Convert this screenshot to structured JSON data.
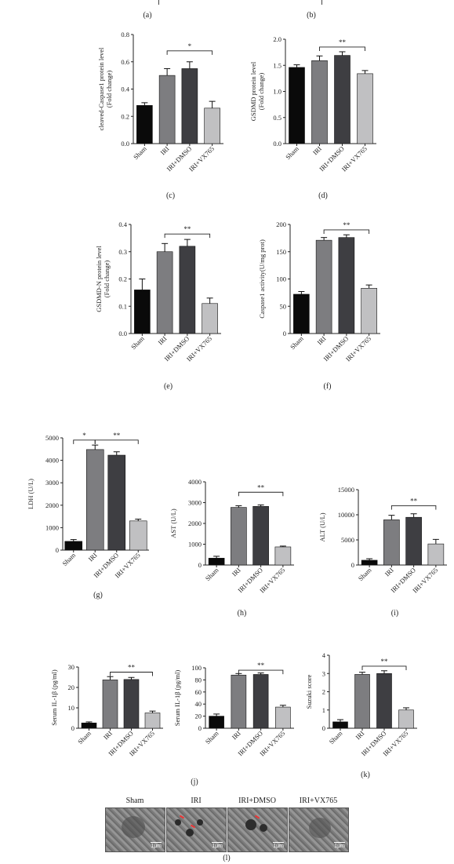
{
  "panels_top": [
    {
      "letter": "(a)"
    },
    {
      "letter": "(b)"
    }
  ],
  "chart_data": [
    {
      "id": "c",
      "letter": "(c)",
      "type": "bar",
      "ylabel": "cleaved-Caspase1 protein level (Fold change)",
      "ylabel_lines": [
        "cleaved-Caspase1 protein level",
        "(Fold change)"
      ],
      "categories": [
        "Sham",
        "IRI",
        "IRI+DMSO",
        "IRI+VX765"
      ],
      "values": [
        0.28,
        0.5,
        0.55,
        0.26
      ],
      "errors": [
        0.02,
        0.05,
        0.05,
        0.05
      ],
      "ylim": [
        0,
        0.8
      ],
      "ticks": [
        0.0,
        0.2,
        0.4,
        0.6,
        0.8
      ],
      "tick_labels": [
        "0.0",
        "0.2",
        "0.4",
        "0.6",
        "0.8"
      ],
      "sig": [
        {
          "from": 1,
          "to": 3,
          "label": "*",
          "level": 0.68
        }
      ]
    },
    {
      "id": "d",
      "letter": "(d)",
      "type": "bar",
      "ylabel": "GSDMD protein level (Fold change)",
      "ylabel_lines": [
        "GSDMD protein level",
        "(Fold change)"
      ],
      "categories": [
        "Sham",
        "IRI",
        "IRI+DMSO",
        "IRI+VX765"
      ],
      "values": [
        1.46,
        1.59,
        1.69,
        1.34
      ],
      "errors": [
        0.05,
        0.09,
        0.07,
        0.06
      ],
      "ylim": [
        0,
        2.0
      ],
      "ticks": [
        0.0,
        0.5,
        1.0,
        1.5,
        2.0
      ],
      "tick_labels": [
        "0.0",
        "0.5",
        "1.0",
        "1.5",
        "2.0"
      ],
      "sig": [
        {
          "from": 1,
          "to": 3,
          "label": "**",
          "level": 1.85
        }
      ]
    },
    {
      "id": "e",
      "letter": "(e)",
      "type": "bar",
      "ylabel": "GSDMD-N protein level (Fold change)",
      "ylabel_lines": [
        "GSDMD-N protein level",
        "(Fold change)"
      ],
      "categories": [
        "Sham",
        "IRI",
        "IRI+DMSO",
        "IRI+VX765"
      ],
      "values": [
        0.16,
        0.3,
        0.32,
        0.11
      ],
      "errors": [
        0.04,
        0.03,
        0.025,
        0.02
      ],
      "ylim": [
        0,
        0.4
      ],
      "ticks": [
        0.0,
        0.1,
        0.2,
        0.3,
        0.4
      ],
      "tick_labels": [
        "0.0",
        "0.1",
        "0.2",
        "0.3",
        "0.4"
      ],
      "sig": [
        {
          "from": 1,
          "to": 3,
          "label": "**",
          "level": 0.365
        }
      ]
    },
    {
      "id": "f",
      "letter": "(f)",
      "type": "bar",
      "ylabel": "Caspase1 activity(U/mg prot)",
      "ylabel_lines": [
        "Caspase1 activity(U/mg prot)"
      ],
      "categories": [
        "Sham",
        "IRI",
        "IRI+DMSO",
        "IRI+VX765"
      ],
      "values": [
        72,
        171,
        176,
        83
      ],
      "errors": [
        5,
        5,
        5,
        6
      ],
      "ylim": [
        0,
        200
      ],
      "ticks": [
        0,
        50,
        100,
        150,
        200
      ],
      "tick_labels": [
        "0",
        "50",
        "100",
        "150",
        "200"
      ],
      "sig": [
        {
          "from": 1,
          "to": 3,
          "label": "**",
          "level": 190
        }
      ]
    },
    {
      "id": "g",
      "letter": "(g)",
      "type": "bar",
      "ylabel": "LDH (U/L)",
      "ylabel_lines": [
        "LDH (U/L)"
      ],
      "categories": [
        "Sham",
        "IRI",
        "IRI+DMSO",
        "IRI+VX765"
      ],
      "values": [
        390,
        4480,
        4230,
        1300
      ],
      "errors": [
        80,
        200,
        150,
        80
      ],
      "ylim": [
        0,
        5000
      ],
      "ticks": [
        0,
        1000,
        2000,
        3000,
        4000,
        5000
      ],
      "tick_labels": [
        "0",
        "1000",
        "2000",
        "3000",
        "4000",
        "5000"
      ],
      "sig": [
        {
          "from": 0,
          "to": 1,
          "label": "*",
          "level": 4900
        },
        {
          "from": 1,
          "to": 3,
          "label": "**",
          "level": 4900
        }
      ]
    },
    {
      "id": "h",
      "letter": "(h)",
      "type": "bar",
      "ylabel": "AST (U/L)",
      "ylabel_lines": [
        "AST (U/L)"
      ],
      "categories": [
        "Sham",
        "IRI",
        "IRI+DMSO",
        "IRI+VX765"
      ],
      "values": [
        330,
        2770,
        2820,
        870
      ],
      "errors": [
        90,
        80,
        70,
        40
      ],
      "ylim": [
        0,
        4000
      ],
      "ticks": [
        0,
        1000,
        2000,
        3000,
        4000
      ],
      "tick_labels": [
        "0",
        "1000",
        "2000",
        "3000",
        "4000"
      ],
      "sig": [
        {
          "from": 1,
          "to": 3,
          "label": "**",
          "level": 3500
        }
      ]
    },
    {
      "id": "i",
      "letter": "(i)",
      "type": "bar",
      "ylabel": "ALT (U/L)",
      "ylabel_lines": [
        "ALT (U/L)"
      ],
      "categories": [
        "Sham",
        "IRI",
        "IRI+DMSO",
        "IRI+VX765"
      ],
      "values": [
        950,
        9000,
        9500,
        4200
      ],
      "errors": [
        300,
        900,
        700,
        900
      ],
      "ylim": [
        0,
        15000
      ],
      "ticks": [
        0,
        5000,
        10000,
        15000
      ],
      "tick_labels": [
        "0",
        "5000",
        "10000",
        "15000"
      ],
      "sig": [
        {
          "from": 1,
          "to": 3,
          "label": "**",
          "level": 11800
        }
      ]
    },
    {
      "id": "j1",
      "letter": "",
      "type": "bar",
      "ylabel": "Serum IL-1β (pg/ml)",
      "ylabel_lines": [
        "Serum IL-1β (pg/ml)"
      ],
      "categories": [
        "Sham",
        "IRI",
        "IRI+DMSO",
        "IRI+VX765"
      ],
      "values": [
        2.6,
        23.7,
        23.9,
        7.5
      ],
      "errors": [
        0.5,
        1.6,
        1.0,
        0.9
      ],
      "ylim": [
        0,
        30
      ],
      "ticks": [
        0,
        10,
        20,
        30
      ],
      "tick_labels": [
        "0",
        "10",
        "20",
        "30"
      ],
      "sig": [
        {
          "from": 1,
          "to": 3,
          "label": "**",
          "level": 27.5
        }
      ]
    },
    {
      "id": "j2",
      "letter": "",
      "type": "bar",
      "ylabel": "Serum IL-1β (pg/ml)",
      "ylabel_lines": [
        "Serum IL-1β (pg/ml)"
      ],
      "categories": [
        "Sham",
        "IRI",
        "IRI+DMSO",
        "IRI+VX765"
      ],
      "values": [
        20,
        88,
        89,
        35
      ],
      "errors": [
        3.5,
        2.5,
        2.5,
        3
      ],
      "ylim": [
        0,
        100
      ],
      "ticks": [
        0,
        20,
        40,
        60,
        80,
        100
      ],
      "tick_labels": [
        "0",
        "20",
        "40",
        "60",
        "80",
        "100"
      ],
      "sig": [
        {
          "from": 1,
          "to": 3,
          "label": "**",
          "level": 96
        }
      ]
    },
    {
      "id": "k",
      "letter": "(k)",
      "type": "bar",
      "ylabel": "Suzuki score",
      "ylabel_lines": [
        "Suzuki score"
      ],
      "categories": [
        "Sham",
        "IRI",
        "IRI+DMSO",
        "IRI+VX765"
      ],
      "values": [
        0.35,
        2.95,
        3.0,
        1.0
      ],
      "errors": [
        0.12,
        0.12,
        0.15,
        0.12
      ],
      "ylim": [
        0,
        4
      ],
      "ticks": [
        0,
        1,
        2,
        3,
        4
      ],
      "tick_labels": [
        "0",
        "1",
        "2",
        "3",
        "4"
      ],
      "sig": [
        {
          "from": 1,
          "to": 3,
          "label": "**",
          "level": 3.4
        }
      ]
    }
  ],
  "group_caption_j": "(j)",
  "em": {
    "letter": "(l)",
    "titles": [
      "Sham",
      "IRI",
      "IRI+DMSO",
      "IRI+VX765"
    ],
    "scale_label": "1μm"
  },
  "colors": {
    "bars": [
      "#0a0a0a",
      "#7d7d80",
      "#3e3e42",
      "#c0c0c2"
    ]
  }
}
